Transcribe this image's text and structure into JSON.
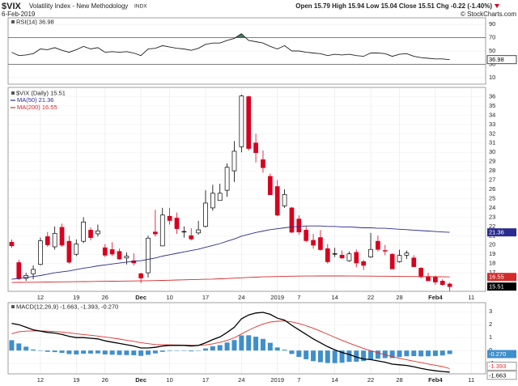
{
  "header": {
    "symbol": "$VIX",
    "name": "Volatility Index - New Methodology",
    "exchange": "INDX",
    "date": "6-Feb-2019",
    "quote": "Open 15.79 High 15.94 Low 15.04 Close 15.51 Chg -0.22 (-1.40%)",
    "credit": "© StockCharts.com"
  },
  "chart_data": [
    {
      "type": "line",
      "title": "RSI(14) 36.98",
      "ylim": [
        0,
        100
      ],
      "yticks": [
        90,
        70,
        50,
        30,
        10
      ],
      "levels": [
        70,
        30
      ],
      "fill_color": "#3f7d57",
      "series": [
        {
          "name": "RSI(14)",
          "color": "#222222",
          "values": [
            48,
            43,
            44,
            46,
            53,
            52,
            55,
            51,
            48,
            52,
            57,
            53,
            55,
            48,
            49,
            48,
            49,
            47,
            43,
            53,
            54,
            58,
            56,
            54,
            53,
            51,
            54,
            60,
            62,
            62,
            66,
            69,
            76,
            66,
            64,
            62,
            57,
            53,
            58,
            50,
            50,
            48,
            47,
            46,
            43,
            45,
            44,
            45,
            43,
            42,
            47,
            47,
            46,
            42,
            45,
            46,
            42,
            40,
            39,
            38,
            38,
            36.98
          ]
        }
      ]
    },
    {
      "type": "candlestick",
      "ylim": [
        15,
        37
      ],
      "yticks": [
        17,
        18,
        19,
        20,
        21,
        22,
        23,
        24,
        25,
        26,
        27,
        28,
        29,
        30,
        31,
        32,
        33,
        34,
        35,
        36
      ],
      "grid": true,
      "xlim": [
        -0.5,
        66
      ],
      "xticks": [
        {
          "value": 4,
          "label": "12"
        },
        {
          "value": 9,
          "label": "19"
        },
        {
          "value": 13,
          "label": "26"
        },
        {
          "value": 18,
          "label": "Dec"
        },
        {
          "value": 22,
          "label": "10"
        },
        {
          "value": 27,
          "label": "17"
        },
        {
          "value": 32,
          "label": "24"
        },
        {
          "value": 37,
          "label": "2019"
        },
        {
          "value": 40,
          "label": "7"
        },
        {
          "value": 45,
          "label": "14"
        },
        {
          "value": 50,
          "label": "22"
        },
        {
          "value": 54,
          "label": "28"
        },
        {
          "value": 59,
          "label": "Feb4"
        },
        {
          "value": 64,
          "label": "11"
        }
      ],
      "name": "$VIX (Daily) 15.51",
      "up_color": "#000000",
      "down_color": "#d8001f",
      "open": [
        20.3,
        18.1,
        16.4,
        16.9,
        17.9,
        20.9,
        19.8,
        21.9,
        20.4,
        19.0,
        20.4,
        21.6,
        21.2,
        19.7,
        19.5,
        19.3,
        18.6,
        18.3,
        16.9,
        17.0,
        21.4,
        19.9,
        23.1,
        22.9,
        21.4,
        21.0,
        21.3,
        22.0,
        24.0,
        24.8,
        25.9,
        28.0,
        30.6,
        36.0,
        31.0,
        29.2,
        27.4,
        26.3,
        24.2,
        24.0,
        22.8,
        21.6,
        20.5,
        20.8,
        19.6,
        19.0,
        18.9,
        18.3,
        19.2,
        18.2,
        18.7,
        20.4,
        19.4,
        19.0,
        18.2,
        18.9,
        18.6,
        17.5,
        16.6,
        16.5,
        16.1,
        15.79
      ],
      "high": [
        20.6,
        18.4,
        17.0,
        17.8,
        20.8,
        21.4,
        22.0,
        22.3,
        21.0,
        20.6,
        23.0,
        21.9,
        22.2,
        20.1,
        20.3,
        19.6,
        19.2,
        19.1,
        17.0,
        21.0,
        23.8,
        24.0,
        24.0,
        23.5,
        22.0,
        21.8,
        22.6,
        25.9,
        26.5,
        26.6,
        28.8,
        31.2,
        36.2,
        36.1,
        32.0,
        30.2,
        27.7,
        27.0,
        26.0,
        24.1,
        23.2,
        22.0,
        21.2,
        21.6,
        20.1,
        19.7,
        19.4,
        19.3,
        19.5,
        18.4,
        21.3,
        21.0,
        20.0,
        19.1,
        19.5,
        19.4,
        18.9,
        17.6,
        17.0,
        16.7,
        16.3,
        15.94
      ],
      "low": [
        19.7,
        16.2,
        16.1,
        16.3,
        17.8,
        19.8,
        19.5,
        19.8,
        18.0,
        18.8,
        20.2,
        20.5,
        20.9,
        18.7,
        18.8,
        18.4,
        17.9,
        17.8,
        15.9,
        16.5,
        20.9,
        19.9,
        22.2,
        21.2,
        20.8,
        20.5,
        21.1,
        21.9,
        23.7,
        24.8,
        25.2,
        26.8,
        30.0,
        30.2,
        28.9,
        27.8,
        25.4,
        23.1,
        24.0,
        21.3,
        21.1,
        20.3,
        19.6,
        19.4,
        18.0,
        18.7,
        18.5,
        18.2,
        17.6,
        17.3,
        18.6,
        19.3,
        18.9,
        17.4,
        18.1,
        18.5,
        17.6,
        16.4,
        16.1,
        15.7,
        15.6,
        15.04
      ],
      "close": [
        19.91,
        16.36,
        16.72,
        17.36,
        20.45,
        20.02,
        21.25,
        19.98,
        18.14,
        20.1,
        22.48,
        20.8,
        21.52,
        18.9,
        19.02,
        18.49,
        18.79,
        18.07,
        16.44,
        20.74,
        21.19,
        23.23,
        22.64,
        21.76,
        21.46,
        20.65,
        21.63,
        24.52,
        25.58,
        25.58,
        28.38,
        30.11,
        36.07,
        30.41,
        29.96,
        28.34,
        25.42,
        23.22,
        25.45,
        21.38,
        21.4,
        20.47,
        19.98,
        19.5,
        18.19,
        19.07,
        18.6,
        19.04,
        18.06,
        17.8,
        19.52,
        19.52,
        19.33,
        17.42,
        18.87,
        19.13,
        17.66,
        16.57,
        16.14,
        16.0,
        15.73,
        15.51
      ],
      "series": [
        {
          "name": "MA(50) 21.36",
          "color": "#2b2b8f",
          "values": [
            16.3,
            16.4,
            16.5,
            16.6,
            16.7,
            16.85,
            17.0,
            17.1,
            17.2,
            17.35,
            17.5,
            17.6,
            17.75,
            17.85,
            17.95,
            18.05,
            18.15,
            18.25,
            18.3,
            18.45,
            18.6,
            18.8,
            18.95,
            19.1,
            19.25,
            19.4,
            19.55,
            19.75,
            19.95,
            20.15,
            20.4,
            20.65,
            20.95,
            21.15,
            21.35,
            21.5,
            21.65,
            21.75,
            21.85,
            21.95,
            22.0,
            22.05,
            22.05,
            22.05,
            22.0,
            22.0,
            21.95,
            21.95,
            21.9,
            21.85,
            21.85,
            21.8,
            21.8,
            21.75,
            21.7,
            21.65,
            21.6,
            21.55,
            21.5,
            21.45,
            21.4,
            21.36
          ]
        },
        {
          "name": "MA(200) 16.55",
          "color": "#d42a2a",
          "values": [
            15.95,
            15.96,
            15.97,
            15.98,
            15.99,
            16.0,
            16.01,
            16.02,
            16.03,
            16.04,
            16.05,
            16.06,
            16.07,
            16.08,
            16.09,
            16.1,
            16.11,
            16.12,
            16.13,
            16.14,
            16.16,
            16.18,
            16.2,
            16.22,
            16.24,
            16.26,
            16.28,
            16.3,
            16.32,
            16.35,
            16.38,
            16.42,
            16.46,
            16.5,
            16.53,
            16.56,
            16.58,
            16.6,
            16.62,
            16.63,
            16.64,
            16.65,
            16.65,
            16.66,
            16.66,
            16.66,
            16.66,
            16.65,
            16.65,
            16.64,
            16.64,
            16.63,
            16.63,
            16.62,
            16.61,
            16.6,
            16.6,
            16.59,
            16.58,
            16.57,
            16.56,
            16.55
          ]
        }
      ]
    },
    {
      "type": "combo",
      "title": "MACD(12,26,9) -1.663, -1.393, -0.270",
      "ylim": [
        -1.8,
        3.7
      ],
      "yticks": [
        3,
        2,
        1,
        0,
        -1
      ],
      "xlim": [
        -0.5,
        66
      ],
      "xticks": [
        {
          "value": 4,
          "label": "12"
        },
        {
          "value": 9,
          "label": "19"
        },
        {
          "value": 13,
          "label": "26"
        },
        {
          "value": 18,
          "label": "Dec"
        },
        {
          "value": 22,
          "label": "10"
        },
        {
          "value": 27,
          "label": "17"
        },
        {
          "value": 32,
          "label": "24"
        },
        {
          "value": 37,
          "label": "2019"
        },
        {
          "value": 40,
          "label": "7"
        },
        {
          "value": 45,
          "label": "14"
        },
        {
          "value": 50,
          "label": "22"
        },
        {
          "value": 54,
          "label": "28"
        },
        {
          "value": 59,
          "label": "Feb4"
        },
        {
          "value": 64,
          "label": "11"
        }
      ],
      "series": [
        {
          "name": "Histogram",
          "style": "bar",
          "color": "#3f8fcb",
          "last_label": "-0.270",
          "values": [
            0.8,
            0.55,
            0.3,
            0.08,
            -0.02,
            -0.1,
            -0.12,
            -0.18,
            -0.27,
            -0.3,
            -0.24,
            -0.23,
            -0.22,
            -0.3,
            -0.32,
            -0.34,
            -0.35,
            -0.36,
            -0.41,
            -0.33,
            -0.22,
            -0.1,
            -0.04,
            -0.03,
            -0.02,
            -0.06,
            0.0,
            0.16,
            0.33,
            0.42,
            0.62,
            0.81,
            1.17,
            1.18,
            1.07,
            0.9,
            0.6,
            0.24,
            0.07,
            -0.26,
            -0.49,
            -0.67,
            -0.82,
            -0.9,
            -0.96,
            -0.97,
            -0.94,
            -0.87,
            -0.86,
            -0.81,
            -0.69,
            -0.63,
            -0.58,
            -0.58,
            -0.5,
            -0.44,
            -0.43,
            -0.45,
            -0.44,
            -0.42,
            -0.38,
            -0.27
          ]
        },
        {
          "name": "Signal",
          "style": "line",
          "color": "#e0302a",
          "values": [
            1.3,
            1.45,
            1.5,
            1.52,
            1.52,
            1.5,
            1.47,
            1.43,
            1.37,
            1.3,
            1.24,
            1.18,
            1.12,
            1.05,
            0.97,
            0.89,
            0.8,
            0.71,
            0.61,
            0.53,
            0.47,
            0.45,
            0.44,
            0.43,
            0.42,
            0.41,
            0.4,
            0.44,
            0.52,
            0.63,
            0.78,
            0.99,
            1.28,
            1.57,
            1.83,
            2.05,
            2.2,
            2.26,
            2.28,
            2.21,
            2.09,
            1.92,
            1.72,
            1.5,
            1.26,
            1.02,
            0.79,
            0.57,
            0.36,
            0.16,
            -0.01,
            -0.17,
            -0.32,
            -0.47,
            -0.6,
            -0.71,
            -0.82,
            -0.93,
            -1.04,
            -1.14,
            -1.24,
            -1.393
          ]
        },
        {
          "name": "MACD",
          "style": "line",
          "color": "#000000",
          "values": [
            2.1,
            2.0,
            1.8,
            1.6,
            1.5,
            1.4,
            1.35,
            1.25,
            1.1,
            1.0,
            1.0,
            0.95,
            0.9,
            0.75,
            0.65,
            0.55,
            0.45,
            0.35,
            0.2,
            0.2,
            0.25,
            0.35,
            0.4,
            0.4,
            0.4,
            0.35,
            0.4,
            0.6,
            0.85,
            1.05,
            1.4,
            1.8,
            2.45,
            2.75,
            2.9,
            2.95,
            2.8,
            2.5,
            2.35,
            1.95,
            1.6,
            1.25,
            0.9,
            0.6,
            0.3,
            0.05,
            -0.15,
            -0.3,
            -0.5,
            -0.65,
            -0.7,
            -0.8,
            -0.9,
            -1.05,
            -1.1,
            -1.15,
            -1.25,
            -1.38,
            -1.48,
            -1.56,
            -1.62,
            -1.663
          ]
        }
      ]
    }
  ]
}
